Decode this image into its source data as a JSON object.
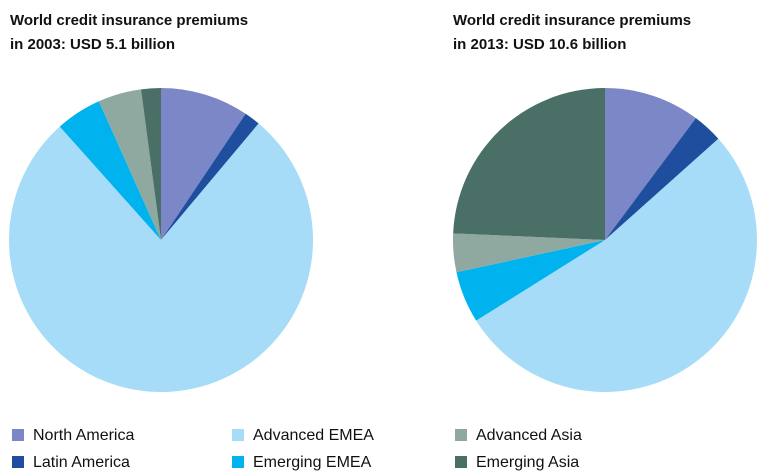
{
  "chart_data": [
    {
      "type": "pie",
      "title": [
        "World credit insurance premiums",
        "in 2003: USD 5.1 billion"
      ],
      "categories": [
        "North America",
        "Latin America",
        "Advanced EMEA",
        "Emerging EMEA",
        "Advanced Asia",
        "Emerging Asia"
      ],
      "values": [
        9.4,
        1.7,
        77.3,
        4.9,
        4.6,
        2.1
      ],
      "colors": [
        "#7b87c6",
        "#1f4e9e",
        "#a6dcf7",
        "#00b3ee",
        "#8fa8a0",
        "#4a6f66"
      ]
    },
    {
      "type": "pie",
      "title": [
        "World credit insurance premiums",
        "in 2013: USD 10.6 billion"
      ],
      "categories": [
        "North America",
        "Latin America",
        "Advanced EMEA",
        "Emerging EMEA",
        "Advanced Asia",
        "Emerging Asia"
      ],
      "values": [
        10.2,
        3.2,
        52.7,
        5.5,
        4.1,
        24.3
      ],
      "colors": [
        "#7b87c6",
        "#1f4e9e",
        "#a6dcf7",
        "#00b3ee",
        "#8fa8a0",
        "#4a6f66"
      ]
    }
  ]
}
